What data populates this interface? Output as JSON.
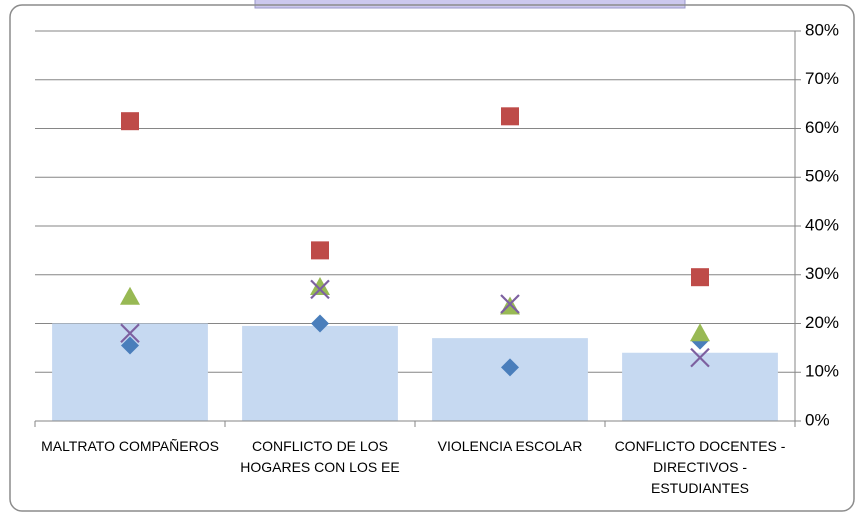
{
  "chart_data": {
    "type": "bar",
    "categories": [
      "MALTRATO COMPAÑEROS",
      "CONFLICTO DE LOS HOGARES CON LOS EE",
      "VIOLENCIA ESCOLAR",
      "CONFLICTO DOCENTES - DIRECTIVOS - ESTUDIANTES"
    ],
    "values": [
      20,
      19.5,
      17,
      14
    ],
    "color": "#c6d9f1",
    "series": [
      {
        "marker": "diamond",
        "color": "#4a7ebb",
        "values": [
          15.5,
          20,
          11,
          16.5
        ]
      },
      {
        "marker": "square",
        "color": "#be4b48",
        "values": [
          61.5,
          35,
          62.5,
          29.5
        ]
      },
      {
        "marker": "triangle",
        "color": "#98b954",
        "values": [
          25.5,
          27.5,
          23.5,
          18
        ]
      },
      {
        "marker": "x",
        "color": "#7d60a0",
        "values": [
          18,
          27,
          24,
          13
        ]
      }
    ],
    "ylim": [
      0,
      80
    ],
    "yticks": [
      {
        "value": 0,
        "label": "0%"
      },
      {
        "value": 10,
        "label": "10%"
      },
      {
        "value": 20,
        "label": "20%"
      },
      {
        "value": 30,
        "label": "30%"
      },
      {
        "value": 40,
        "label": "40%"
      },
      {
        "value": 50,
        "label": "50%"
      },
      {
        "value": 60,
        "label": "60%"
      },
      {
        "value": 70,
        "label": "70%"
      },
      {
        "value": 80,
        "label": "80%"
      }
    ],
    "yaxis_side": "right",
    "grid": true
  }
}
